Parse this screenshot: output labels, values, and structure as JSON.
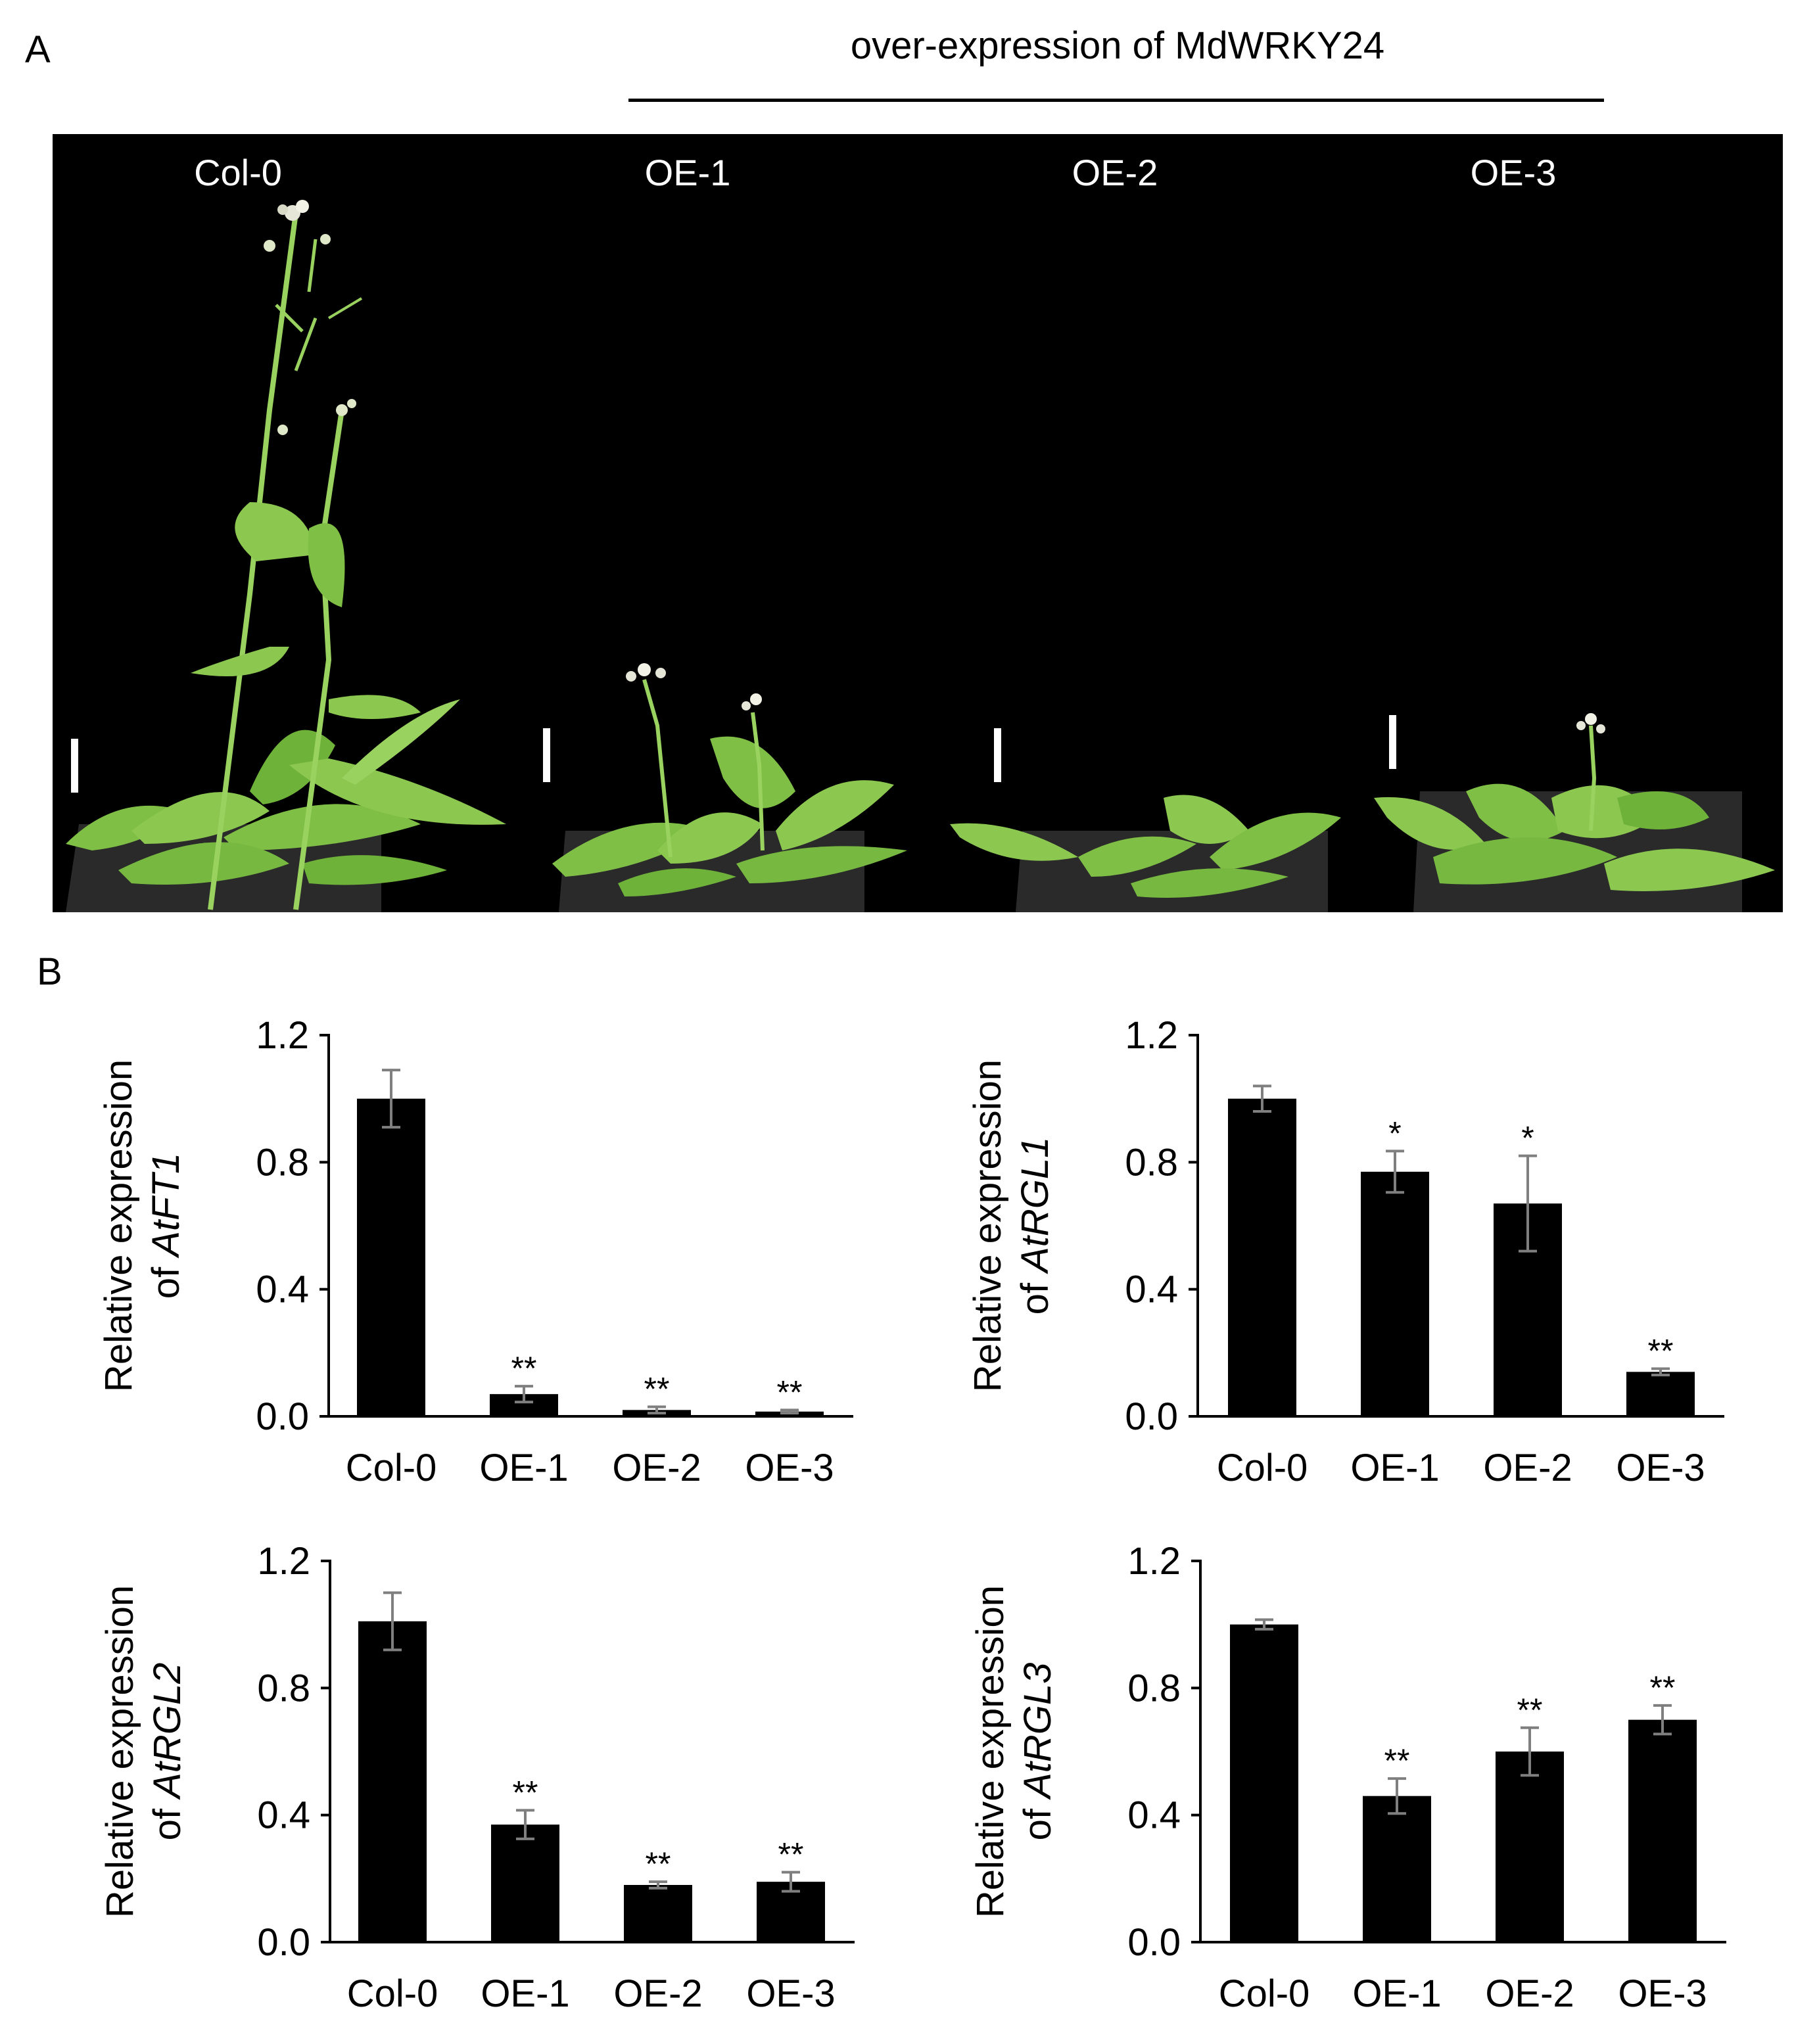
{
  "panel_a": {
    "letter": "A",
    "group_label": "over-expression of MdWRKY24",
    "plant_labels": [
      "Col-0",
      "OE-1",
      "OE-2",
      "OE-3"
    ]
  },
  "panel_b": {
    "letter": "B"
  },
  "colors": {
    "bar": "#000000",
    "error_bar": "#7f7f7f",
    "photo_bg": "#000000",
    "leaf": "#7fbf45",
    "pot": "#2a2a2a"
  },
  "chart_data": [
    {
      "type": "bar",
      "categories": [
        "Col-0",
        "OE-1",
        "OE-2",
        "OE-3"
      ],
      "values": [
        1.0,
        0.07,
        0.02,
        0.015
      ],
      "errors": [
        0.09,
        0.025,
        0.01,
        0.005
      ],
      "significance": [
        "",
        "**",
        "**",
        "**"
      ],
      "ylabel_line1": "Relative expression",
      "ylabel_line2_prefix": "of ",
      "ylabel_gene": "AtFT1",
      "yticks": [
        "0.0",
        "0.4",
        "0.8",
        "1.2"
      ],
      "ylim": [
        0,
        1.2
      ],
      "grid": false
    },
    {
      "type": "bar",
      "categories": [
        "Col-0",
        "OE-1",
        "OE-2",
        "OE-3"
      ],
      "values": [
        1.0,
        0.77,
        0.67,
        0.14
      ],
      "errors": [
        0.04,
        0.065,
        0.15,
        0.01
      ],
      "significance": [
        "",
        "*",
        "*",
        "**"
      ],
      "ylabel_line1": "Relative expression",
      "ylabel_line2_prefix": "of ",
      "ylabel_gene": "AtRGL1",
      "yticks": [
        "0.0",
        "0.4",
        "0.8",
        "1.2"
      ],
      "ylim": [
        0,
        1.2
      ],
      "grid": false
    },
    {
      "type": "bar",
      "categories": [
        "Col-0",
        "OE-1",
        "OE-2",
        "OE-3"
      ],
      "values": [
        1.01,
        0.37,
        0.18,
        0.19
      ],
      "errors": [
        0.09,
        0.045,
        0.01,
        0.03
      ],
      "significance": [
        "",
        "**",
        "**",
        "**"
      ],
      "ylabel_line1": "Relative expression",
      "ylabel_line2_prefix": "of ",
      "ylabel_gene": "AtRGL2",
      "yticks": [
        "0.0",
        "0.4",
        "0.8",
        "1.2"
      ],
      "ylim": [
        0,
        1.2
      ],
      "grid": false
    },
    {
      "type": "bar",
      "categories": [
        "Col-0",
        "OE-1",
        "OE-2",
        "OE-3"
      ],
      "values": [
        1.0,
        0.46,
        0.6,
        0.7
      ],
      "errors": [
        0.015,
        0.055,
        0.075,
        0.045
      ],
      "significance": [
        "",
        "**",
        "**",
        "**"
      ],
      "ylabel_line1": "Relative expression",
      "ylabel_line2_prefix": "of ",
      "ylabel_gene": "AtRGL3",
      "yticks": [
        "0.0",
        "0.4",
        "0.8",
        "1.2"
      ],
      "ylim": [
        0,
        1.2
      ],
      "grid": false
    }
  ]
}
